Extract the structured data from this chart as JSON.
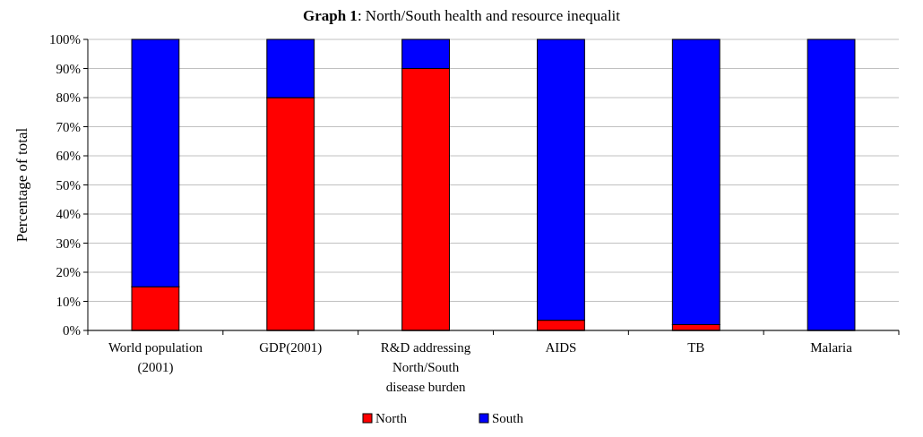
{
  "chart_data": {
    "type": "bar",
    "title": "Graph 1: North/South health and resource inequalit",
    "ylabel": "Percentage of total",
    "categories": [
      "World population (2001)",
      "GDP(2001)",
      "R&D addressing North/South disease burden",
      "AIDS",
      "TB",
      "Malaria"
    ],
    "series": [
      {
        "name": "North",
        "color": "#ff0000",
        "values": [
          15,
          80,
          90,
          3.5,
          2,
          0
        ]
      },
      {
        "name": "South",
        "color": "#0000ff",
        "values": [
          85,
          20,
          10,
          96.5,
          98,
          100
        ]
      }
    ],
    "stacked": true,
    "ylim": [
      0,
      100
    ],
    "yticks": [
      {
        "value": 0,
        "label": "0%"
      },
      {
        "value": 10,
        "label": "10%"
      },
      {
        "value": 20,
        "label": "20%"
      },
      {
        "value": 30,
        "label": "30%"
      },
      {
        "value": 40,
        "label": "40%"
      },
      {
        "value": 50,
        "label": "50%"
      },
      {
        "value": 60,
        "label": "60%"
      },
      {
        "value": 70,
        "label": "70%"
      },
      {
        "value": 80,
        "label": "80%"
      },
      {
        "value": 90,
        "label": "90%"
      },
      {
        "value": 100,
        "label": "100%"
      }
    ],
    "grid": "y",
    "legend": "bottom"
  }
}
